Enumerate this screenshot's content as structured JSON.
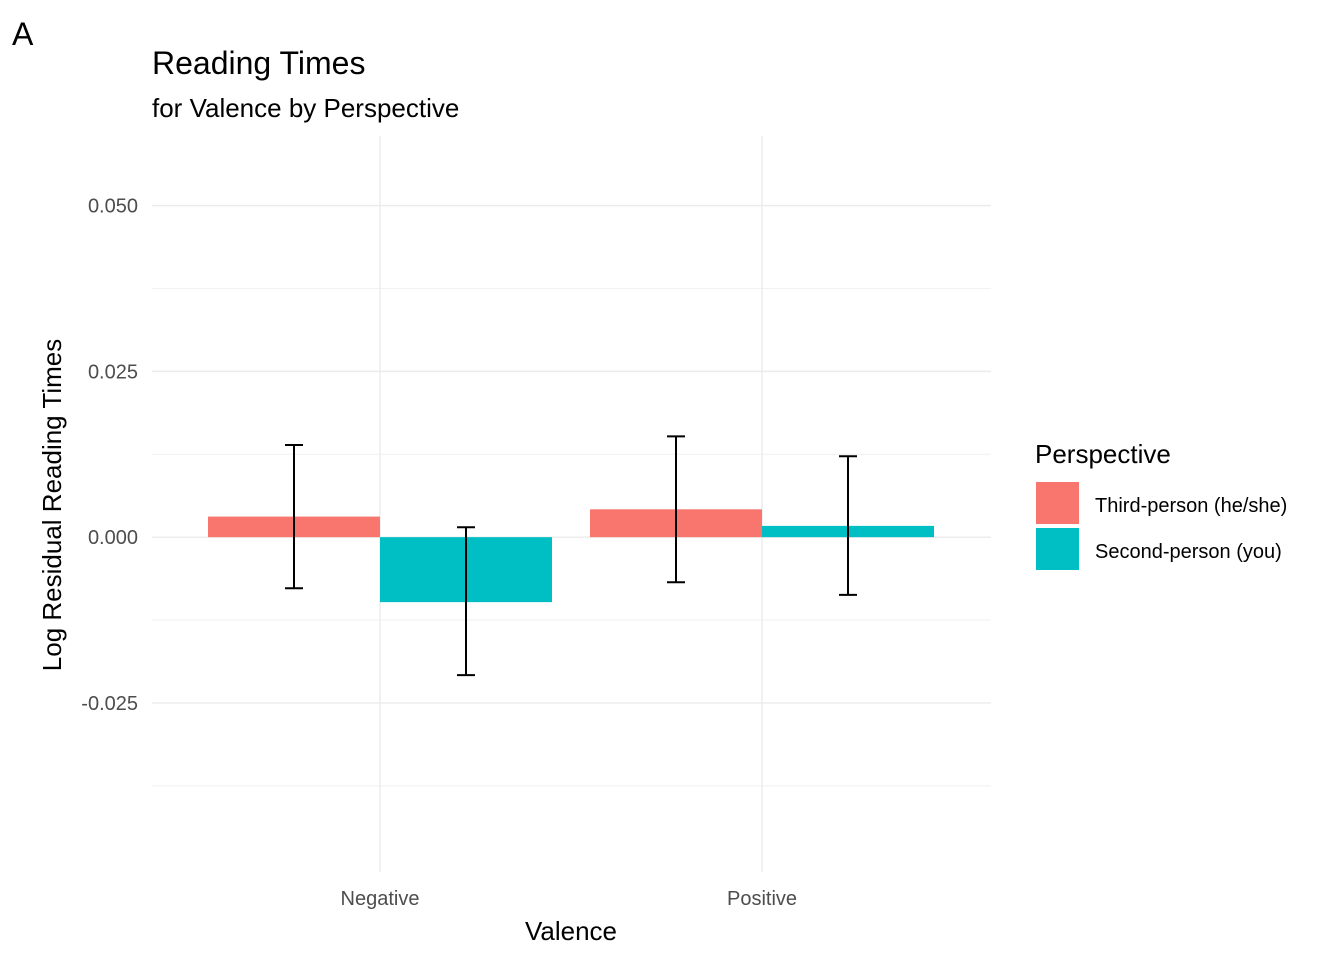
{
  "panel_tag": "A",
  "chart_data": {
    "type": "bar",
    "title": "Reading Times",
    "subtitle": "for Valence by Perspective",
    "xlabel": "Valence",
    "ylabel": "Log Residual Reading Times",
    "categories": [
      "Negative",
      "Positive"
    ],
    "ylim": [
      -0.0505,
      0.0605
    ],
    "yticks": [
      0.05,
      0.025,
      0.0,
      -0.025
    ],
    "ytick_labels": [
      "0.050",
      "0.025",
      "0.000",
      "-0.025"
    ],
    "grid": true,
    "legend": {
      "title": "Perspective",
      "position": "right"
    },
    "series": [
      {
        "name": "Third-person (he/she)",
        "color": "#F8766D",
        "values": [
          0.0031,
          0.0042
        ],
        "error_low": [
          -0.0077,
          -0.0068
        ],
        "error_high": [
          0.0139,
          0.0152
        ]
      },
      {
        "name": "Second-person (you)",
        "color": "#00BFC4",
        "values": [
          -0.0098,
          0.0017
        ],
        "error_low": [
          -0.0208,
          -0.0087
        ],
        "error_high": [
          0.0015,
          0.0122
        ]
      }
    ]
  }
}
